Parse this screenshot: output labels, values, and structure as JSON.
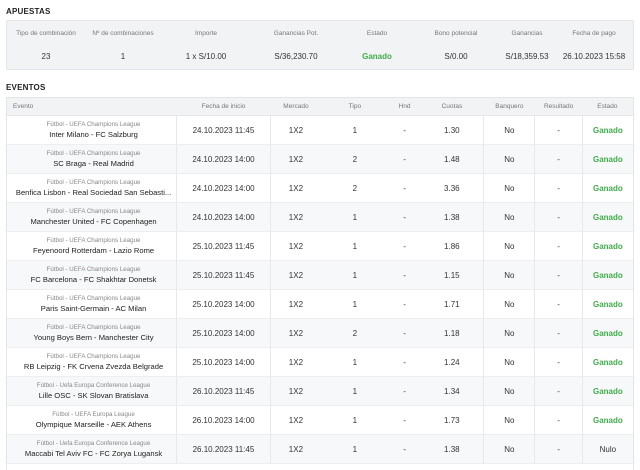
{
  "apuestas": {
    "title": "APUESTAS",
    "headers": [
      "Tipo de combinación",
      "Nº de combinaciones",
      "Importe",
      "Ganancias Pot.",
      "Estado",
      "Bono potencial",
      "Ganancias",
      "Fecha de pago"
    ],
    "values": [
      "23",
      "1",
      "1 x S/10.00",
      "S/36,230.70",
      "Ganado",
      "S/0.00",
      "S/18,359.53",
      "26.10.2023 15:58"
    ]
  },
  "eventos": {
    "title": "EVENTOS",
    "headers": [
      "Evento",
      "Fecha de inicio",
      "Mercado",
      "Tipo",
      "Hnd",
      "Cuotas",
      "Banquero",
      "Resultado",
      "Estado"
    ],
    "rows": [
      {
        "league": "Fútbol - UEFA Champions League",
        "match": "Inter Milano - FC Salzburg",
        "date": "24.10.2023 11:45",
        "market": "1X2",
        "tipo": "1",
        "hnd": "-",
        "odds": "1.30",
        "banker": "No",
        "result": "-",
        "status": "Ganado"
      },
      {
        "league": "Fútbol - UEFA Champions League",
        "match": "SC Braga - Real Madrid",
        "date": "24.10.2023 14:00",
        "market": "1X2",
        "tipo": "2",
        "hnd": "-",
        "odds": "1.48",
        "banker": "No",
        "result": "-",
        "status": "Ganado"
      },
      {
        "league": "Fútbol - UEFA Champions League",
        "match": "Benfica Lisbon - Real Sociedad San Sebasti...",
        "date": "24.10.2023 14:00",
        "market": "1X2",
        "tipo": "2",
        "hnd": "-",
        "odds": "3.36",
        "banker": "No",
        "result": "-",
        "status": "Ganado"
      },
      {
        "league": "Fútbol - UEFA Champions League",
        "match": "Manchester United - FC Copenhagen",
        "date": "24.10.2023 14:00",
        "market": "1X2",
        "tipo": "1",
        "hnd": "-",
        "odds": "1.38",
        "banker": "No",
        "result": "-",
        "status": "Ganado"
      },
      {
        "league": "Fútbol - UEFA Champions League",
        "match": "Feyenoord Rotterdam - Lazio Rome",
        "date": "25.10.2023 11:45",
        "market": "1X2",
        "tipo": "1",
        "hnd": "-",
        "odds": "1.86",
        "banker": "No",
        "result": "-",
        "status": "Ganado"
      },
      {
        "league": "Fútbol - UEFA Champions League",
        "match": "FC Barcelona - FC Shakhtar Donetsk",
        "date": "25.10.2023 11:45",
        "market": "1X2",
        "tipo": "1",
        "hnd": "-",
        "odds": "1.15",
        "banker": "No",
        "result": "-",
        "status": "Ganado"
      },
      {
        "league": "Fútbol - UEFA Champions League",
        "match": "Paris Saint-Germain - AC Milan",
        "date": "25.10.2023 14:00",
        "market": "1X2",
        "tipo": "1",
        "hnd": "-",
        "odds": "1.71",
        "banker": "No",
        "result": "-",
        "status": "Ganado"
      },
      {
        "league": "Fútbol - UEFA Champions League",
        "match": "Young Boys Bern - Manchester City",
        "date": "25.10.2023 14:00",
        "market": "1X2",
        "tipo": "2",
        "hnd": "-",
        "odds": "1.18",
        "banker": "No",
        "result": "-",
        "status": "Ganado"
      },
      {
        "league": "Fútbol - UEFA Champions League",
        "match": "RB Leipzig - FK Crvena Zvezda Belgrade",
        "date": "25.10.2023 14:00",
        "market": "1X2",
        "tipo": "1",
        "hnd": "-",
        "odds": "1.24",
        "banker": "No",
        "result": "-",
        "status": "Ganado"
      },
      {
        "league": "Fútbol - Uefa Europa Conference League",
        "match": "Lille OSC - SK Slovan Bratislava",
        "date": "26.10.2023 11:45",
        "market": "1X2",
        "tipo": "1",
        "hnd": "-",
        "odds": "1.34",
        "banker": "No",
        "result": "-",
        "status": "Ganado"
      },
      {
        "league": "Fútbol - UEFA Europa League",
        "match": "Olympique Marseille - AEK Athens",
        "date": "26.10.2023 14:00",
        "market": "1X2",
        "tipo": "1",
        "hnd": "-",
        "odds": "1.73",
        "banker": "No",
        "result": "-",
        "status": "Ganado"
      },
      {
        "league": "Fútbol - Uefa Europa Conference League",
        "match": "Maccabi Tel Aviv FC - FC Zorya Lugansk",
        "date": "26.10.2023 11:45",
        "market": "1X2",
        "tipo": "1",
        "hnd": "-",
        "odds": "1.38",
        "banker": "No",
        "result": "-",
        "status": "Nulo"
      }
    ]
  },
  "colors": {
    "won": "#3fae49",
    "null": "#999999"
  }
}
